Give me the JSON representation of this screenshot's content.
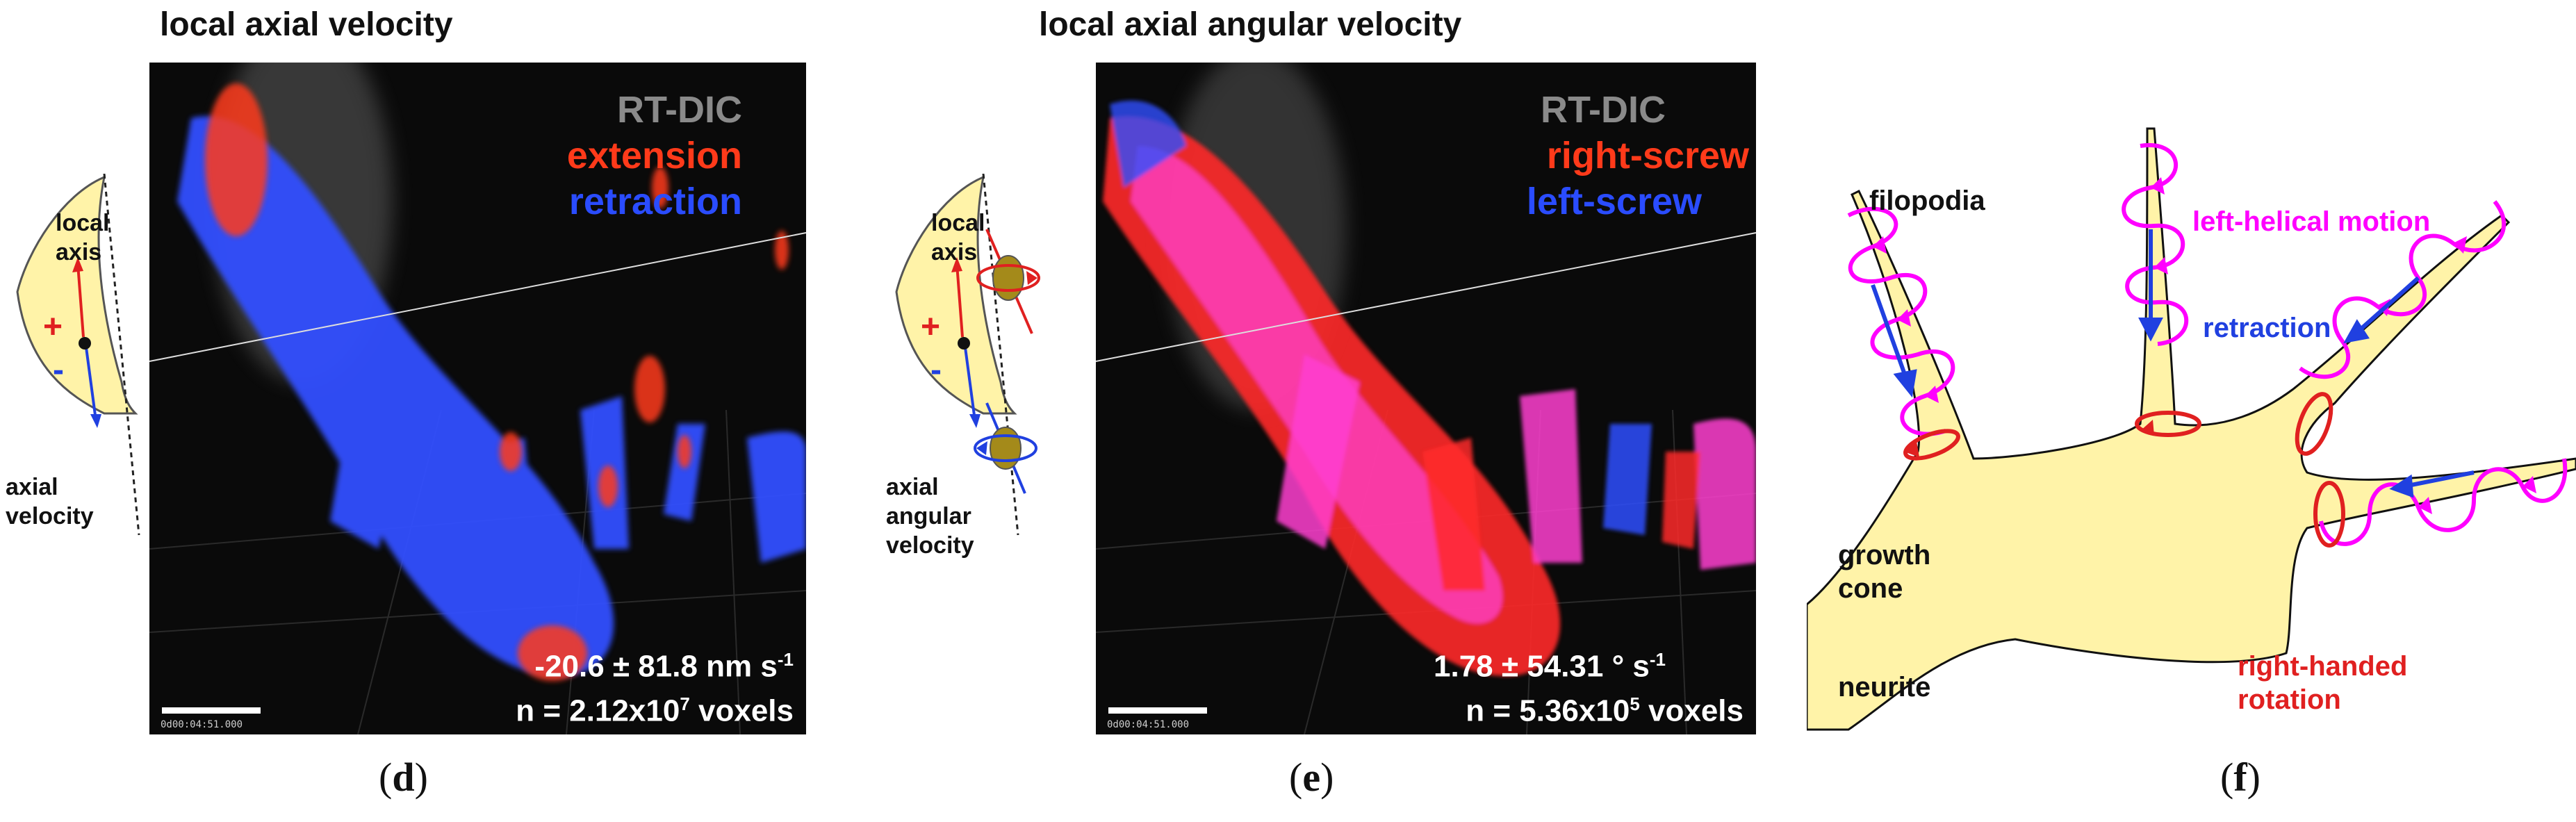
{
  "panel_d": {
    "title": "local axial velocity",
    "legend": [
      "RT-DIC",
      "extension",
      "retraction"
    ],
    "stat_mean": "-20.6 ± 81.8 nm s",
    "stat_mean_sup": "-1",
    "stat_n": "n = 2.12x10",
    "stat_n_sup": "7",
    "stat_n_unit": " voxels",
    "timestamp": "0d00:04:51.000",
    "label": "d",
    "schematic": {
      "local_axis": "local\naxis",
      "plus": "+",
      "minus": "-",
      "axial_velocity": "axial\nvelocity"
    }
  },
  "panel_e": {
    "title": "local axial angular velocity",
    "legend": [
      "RT-DIC",
      "right-screw",
      "left-screw"
    ],
    "stat_mean": "1.78 ± 54.31 ° s",
    "stat_mean_sup": "-1",
    "stat_n": "n = 5.36x10",
    "stat_n_sup": "5",
    "stat_n_unit": " voxels",
    "timestamp": "0d00:04:51.000",
    "label": "e",
    "schematic": {
      "local_axis": "local\naxis",
      "plus": "+",
      "minus": "-",
      "axial_angular_velocity": "axial\nangular\nvelocity"
    }
  },
  "panel_f": {
    "label": "f",
    "filopodia": "filopodia",
    "left_helical": "left-helical motion",
    "retraction": "retraction",
    "growth_cone": "growth\ncone",
    "neurite": "neurite",
    "right_handed": "right-handed\nrotation"
  },
  "colors": {
    "extension_red": "#ff3a1a",
    "retraction_blue": "#2a4cff",
    "rtdic_gray": "#8a8a8a",
    "magenta": "#ff00ff",
    "cell_yellow": "#fff3a8"
  }
}
